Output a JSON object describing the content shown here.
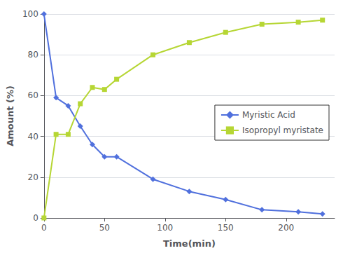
{
  "chart_data": {
    "type": "line",
    "x": [
      0,
      10,
      20,
      30,
      40,
      50,
      60,
      90,
      120,
      150,
      180,
      210,
      230
    ],
    "series": [
      {
        "name": "Myristic Acid",
        "marker": "diamond",
        "values": [
          100,
          59,
          55,
          45,
          36,
          30,
          30,
          19,
          13,
          9,
          4,
          3,
          2
        ]
      },
      {
        "name": "Isopropyl myristate",
        "marker": "square",
        "values": [
          0,
          41,
          41,
          56,
          64,
          63,
          68,
          80,
          86,
          91,
          95,
          96,
          97
        ]
      }
    ],
    "xlabel": "Time(min)",
    "ylabel": "Amount (%)",
    "xlim": [
      0,
      240
    ],
    "ylim": [
      0,
      100
    ],
    "xticks": [
      0,
      50,
      100,
      150,
      200
    ],
    "yticks": [
      0,
      20,
      40,
      60,
      80,
      100
    ],
    "grid": "y",
    "legend": "right"
  }
}
